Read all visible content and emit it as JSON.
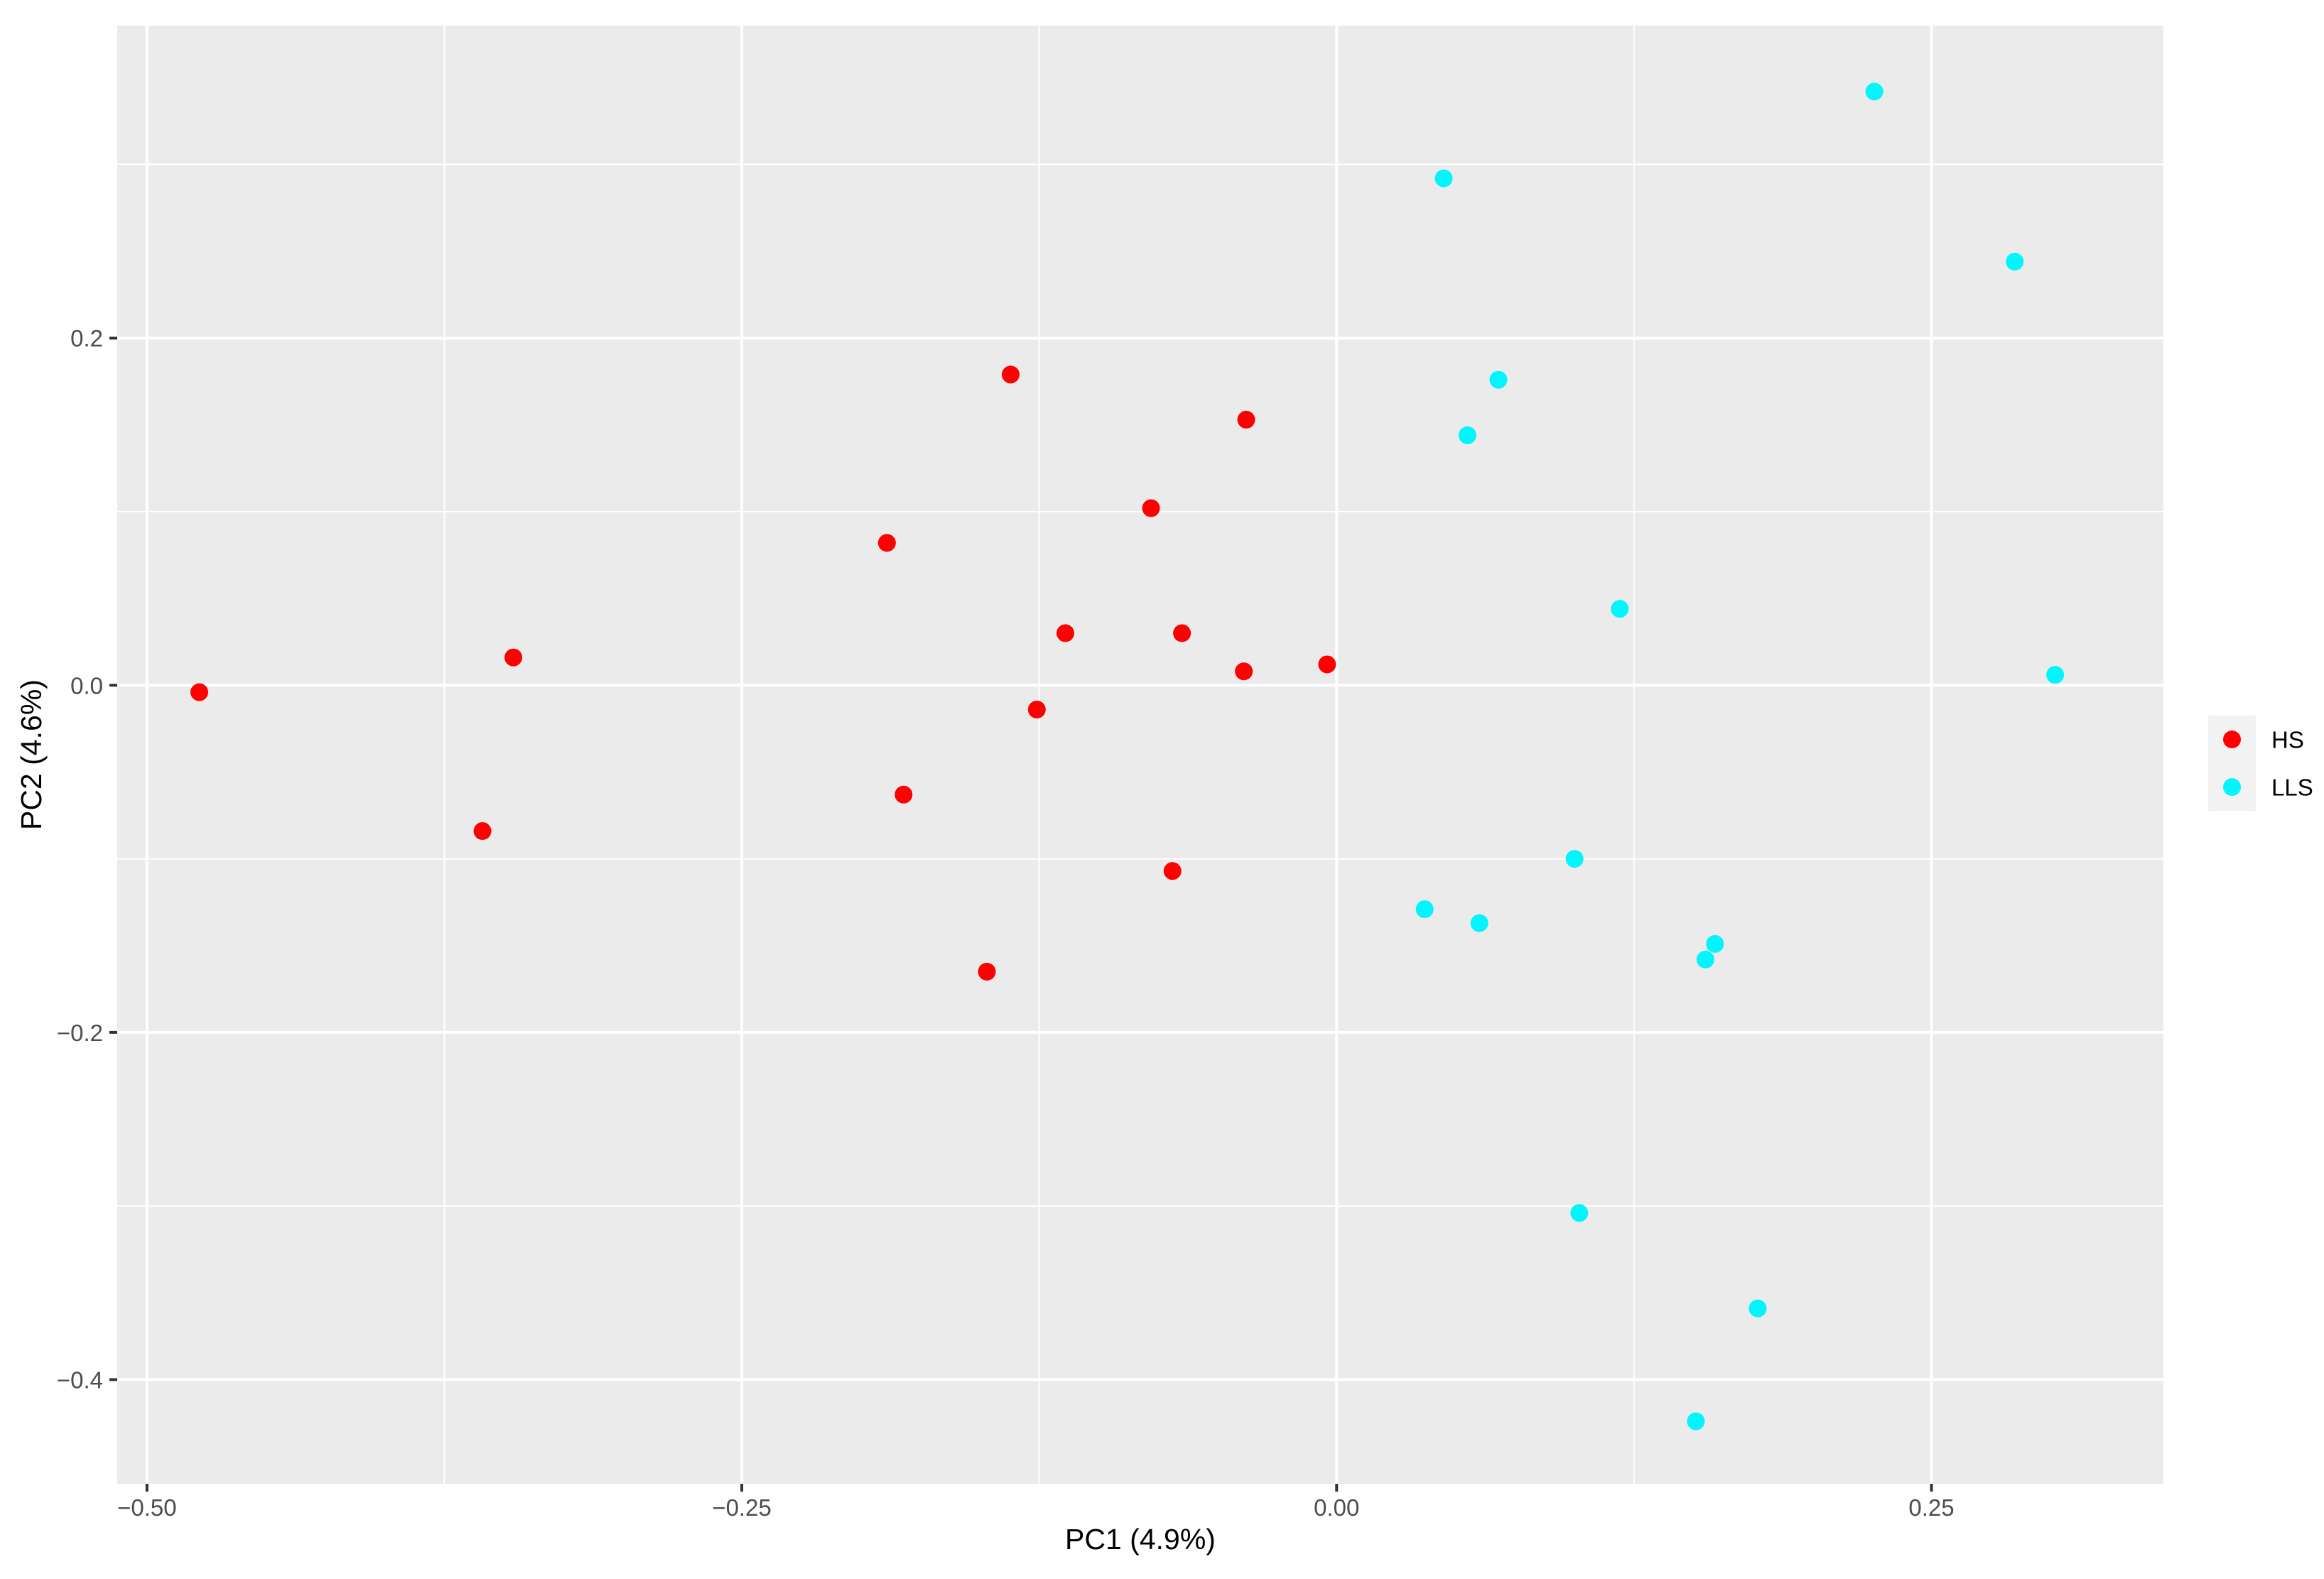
{
  "chart_data": {
    "type": "scatter",
    "title": "",
    "xlabel": "PC1 (4.9%)",
    "ylabel": "PC2 (4.6%)",
    "xlim": [
      -0.5125,
      0.3475
    ],
    "ylim": [
      -0.46,
      0.38
    ],
    "xticks": [
      -0.5,
      -0.25,
      0.0,
      0.25
    ],
    "xtick_labels": [
      "−0.50",
      "−0.25",
      "0.00",
      "0.25"
    ],
    "yticks": [
      -0.4,
      -0.2,
      0.0,
      0.2
    ],
    "ytick_labels": [
      "−0.4",
      "−0.2",
      "0.0",
      "0.2"
    ],
    "grid": true,
    "legend_position": "right",
    "panel_color": "#ebebeb",
    "grid_color": "#ffffff",
    "series": [
      {
        "name": "HS",
        "color": "#ff0000",
        "points": [
          {
            "x": -0.478,
            "y": -0.004
          },
          {
            "x": -0.359,
            "y": -0.084
          },
          {
            "x": -0.346,
            "y": 0.016
          },
          {
            "x": -0.189,
            "y": 0.082
          },
          {
            "x": -0.182,
            "y": -0.063
          },
          {
            "x": -0.147,
            "y": -0.165
          },
          {
            "x": -0.137,
            "y": 0.179
          },
          {
            "x": -0.126,
            "y": -0.014
          },
          {
            "x": -0.114,
            "y": 0.03
          },
          {
            "x": -0.078,
            "y": 0.102
          },
          {
            "x": -0.069,
            "y": -0.107
          },
          {
            "x": -0.065,
            "y": 0.03
          },
          {
            "x": -0.039,
            "y": 0.008
          },
          {
            "x": -0.038,
            "y": 0.153
          },
          {
            "x": -0.004,
            "y": 0.012
          }
        ]
      },
      {
        "name": "LLS",
        "color": "#00f5ff",
        "points": [
          {
            "x": 0.037,
            "y": -0.129
          },
          {
            "x": 0.045,
            "y": 0.292
          },
          {
            "x": 0.055,
            "y": 0.144
          },
          {
            "x": 0.06,
            "y": -0.137
          },
          {
            "x": 0.068,
            "y": 0.176
          },
          {
            "x": 0.1,
            "y": -0.1
          },
          {
            "x": 0.102,
            "y": -0.304
          },
          {
            "x": 0.119,
            "y": 0.044
          },
          {
            "x": 0.151,
            "y": -0.424
          },
          {
            "x": 0.155,
            "y": -0.158
          },
          {
            "x": 0.159,
            "y": -0.149
          },
          {
            "x": 0.177,
            "y": -0.359
          },
          {
            "x": 0.226,
            "y": 0.342
          },
          {
            "x": 0.285,
            "y": 0.244
          },
          {
            "x": 0.302,
            "y": 0.006
          }
        ]
      }
    ]
  }
}
